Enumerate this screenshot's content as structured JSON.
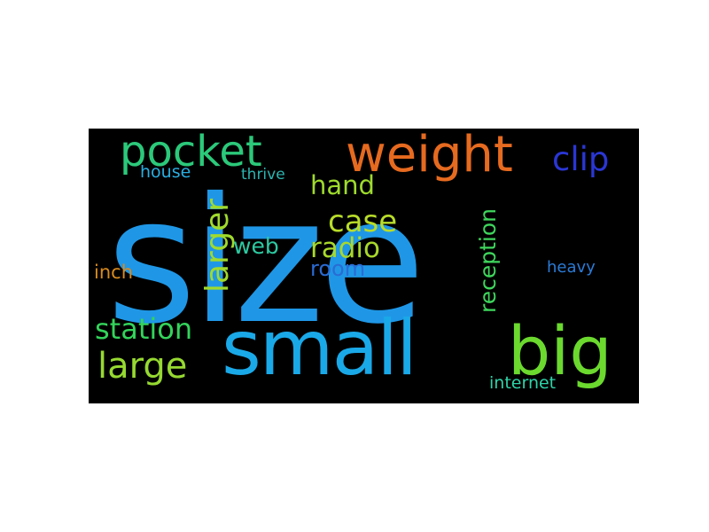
{
  "word_cloud": {
    "background": "#000000",
    "words": [
      {
        "text": "size",
        "color": "#1f97e6"
      },
      {
        "text": "small",
        "color": "#1aa9e8"
      },
      {
        "text": "big",
        "color": "#6bd92e"
      },
      {
        "text": "weight",
        "color": "#e66a1f"
      },
      {
        "text": "pocket",
        "color": "#2bc97a"
      },
      {
        "text": "clip",
        "color": "#2a36d4"
      },
      {
        "text": "large",
        "color": "#96d931"
      },
      {
        "text": "station",
        "color": "#33d45a"
      },
      {
        "text": "larger",
        "color": "#a0da2c"
      },
      {
        "text": "case",
        "color": "#b8dc2a"
      },
      {
        "text": "radio",
        "color": "#a8d82c"
      },
      {
        "text": "hand",
        "color": "#9edb2d"
      },
      {
        "text": "reception",
        "color": "#3ed65c"
      },
      {
        "text": "web",
        "color": "#2cc9a0"
      },
      {
        "text": "room",
        "color": "#2a6bd4"
      },
      {
        "text": "house",
        "color": "#2aaee0"
      },
      {
        "text": "thrive",
        "color": "#2cb5b0"
      },
      {
        "text": "inch",
        "color": "#d88a1e"
      },
      {
        "text": "heavy",
        "color": "#2a7bd6"
      },
      {
        "text": "internet",
        "color": "#2ed4a8"
      }
    ]
  }
}
